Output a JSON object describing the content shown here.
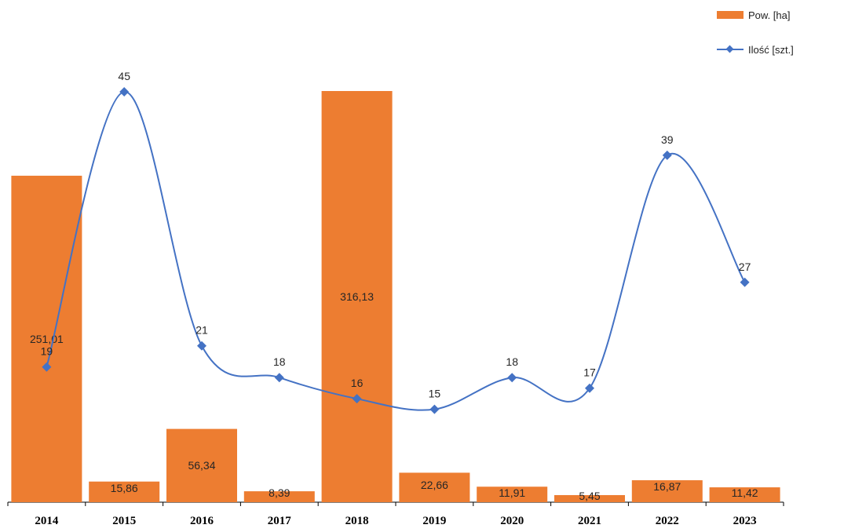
{
  "chart_data": {
    "type": "bar",
    "categories": [
      "2014",
      "2015",
      "2016",
      "2017",
      "2018",
      "2019",
      "2020",
      "2021",
      "2022",
      "2023"
    ],
    "series": [
      {
        "name": "Pow. [ha]",
        "type": "bar",
        "values": [
          251.01,
          15.86,
          56.34,
          8.39,
          316.13,
          22.66,
          11.91,
          5.45,
          16.87,
          11.42
        ],
        "labels": [
          "251,01",
          "15,86",
          "56,34",
          "8,39",
          "316,13",
          "22,66",
          "11,91",
          "5,45",
          "16,87",
          "11,42"
        ],
        "color": "#ed7d31"
      },
      {
        "name": "Ilość [szt.]",
        "type": "line",
        "values": [
          19,
          45,
          21,
          18,
          16,
          15,
          18,
          17,
          39,
          27
        ],
        "labels": [
          "19",
          "45",
          "21",
          "18",
          "16",
          "15",
          "18",
          "17",
          "39",
          "27"
        ],
        "color": "#4472c4",
        "marker": "diamond",
        "smooth": true
      }
    ],
    "y_primary_range": [
      0,
      316.13
    ],
    "y_secondary_range": [
      0,
      45
    ],
    "grid": false,
    "legend_position": "top-right"
  },
  "legend": {
    "bar_label": "Pow. [ha]",
    "line_label": "Ilość [szt.]"
  }
}
